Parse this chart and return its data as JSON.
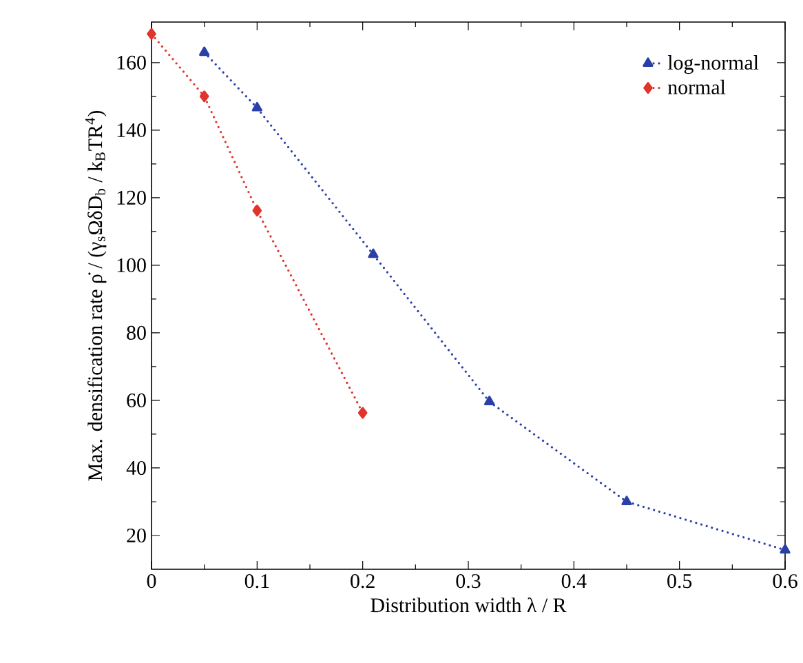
{
  "chart_data": {
    "type": "line",
    "xlabel": "Distribution width λ / R",
    "ylabel": "Max. densification rate ρ̇ / (γ$_{s}$ΩδD$_{b}$ / k$_{B}$TR$^{4}$)",
    "xlim": [
      0,
      0.6
    ],
    "ylim": [
      10,
      172
    ],
    "xticks": [
      0,
      0.1,
      0.2,
      0.3,
      0.4,
      0.5,
      0.6
    ],
    "yticks": [
      20,
      40,
      60,
      80,
      100,
      120,
      140,
      160
    ],
    "legend": "top right",
    "line_style": "dotted",
    "series": [
      {
        "name": "log-normal",
        "color": "#2b3fa8",
        "marker": "triangle",
        "x": [
          0.05,
          0.1,
          0.21,
          0.32,
          0.45,
          0.6
        ],
        "values": [
          163,
          146.6,
          103.2,
          59.6,
          30.0,
          15.7
        ]
      },
      {
        "name": "normal",
        "color": "#e0342c",
        "marker": "diamond",
        "x": [
          0,
          0.05,
          0.1,
          0.2
        ],
        "values": [
          168.5,
          150,
          116.2,
          56.3
        ]
      }
    ]
  }
}
